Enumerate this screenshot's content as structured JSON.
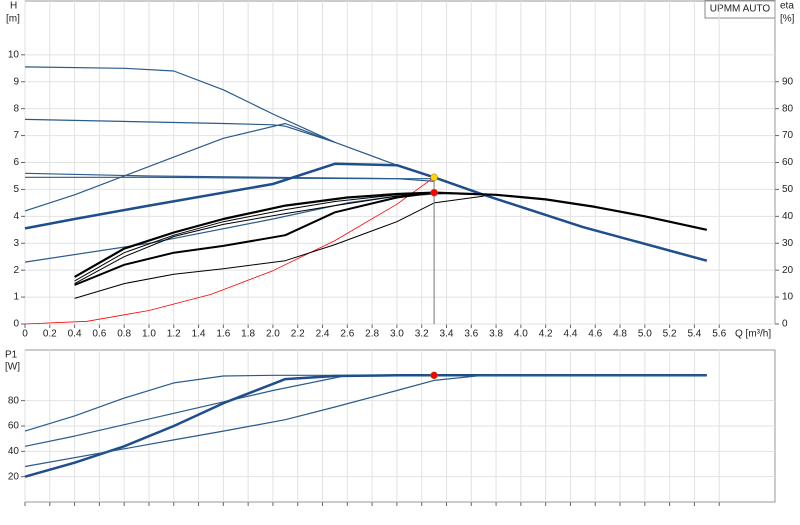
{
  "chart_data": [
    {
      "type": "line",
      "title": "UPMM AUTO",
      "ylabel": "H",
      "yunit": "[m]",
      "y2label": "eta",
      "y2unit": "[%]",
      "xlabel": "Q [m³/h]",
      "xlim": [
        0,
        6.05
      ],
      "ylim": [
        0,
        12
      ],
      "y2lim": [
        0,
        120
      ],
      "grid": true,
      "xtick_labels": true,
      "xticks": [
        0,
        0.2,
        0.4,
        0.6,
        0.8,
        {
          "value": 1,
          "label": "1.0"
        },
        1.2,
        1.4,
        1.6,
        1.8,
        {
          "value": 2,
          "label": "2.0"
        },
        2.2,
        2.4,
        2.6,
        2.8,
        {
          "value": 3,
          "label": "3.0"
        },
        3.2,
        3.4,
        3.6,
        3.8,
        {
          "value": 4,
          "label": "4.0"
        },
        4.2,
        4.4,
        4.6,
        4.8,
        {
          "value": 5,
          "label": "5.0"
        },
        5.2,
        5.4,
        5.6
      ],
      "yticks": [
        0,
        1,
        2,
        3,
        4,
        5,
        6,
        7,
        8,
        9,
        10
      ],
      "y2ticks": [
        0,
        10,
        20,
        30,
        40,
        50,
        60,
        70,
        80,
        90
      ],
      "series": [
        {
          "color": "#2a5a8c",
          "width": 1.2,
          "x": [
            0,
            0.8,
            1.2,
            1.6,
            2.0,
            2.5,
            3.0,
            3.3,
            3.7,
            4.5,
            5.5
          ],
          "values": [
            9.55,
            9.5,
            9.4,
            8.7,
            7.8,
            6.75,
            5.9,
            5.45,
            4.8,
            3.6,
            2.35
          ]
        },
        {
          "color": "#2a5a8c",
          "width": 1.2,
          "x": [
            0,
            1.6,
            2.0,
            2.1,
            2.5
          ],
          "values": [
            7.6,
            7.45,
            7.4,
            7.35,
            6.75
          ]
        },
        {
          "color": "#2a5a8c",
          "width": 1.2,
          "x": [
            0,
            1.0,
            2.0,
            3.0,
            3.3
          ],
          "values": [
            5.6,
            5.5,
            5.45,
            5.4,
            5.3
          ]
        },
        {
          "color": "#2a5a8c",
          "width": 1.2,
          "x": [
            0,
            1.0,
            2.0,
            3.0,
            3.3
          ],
          "values": [
            5.45,
            5.45,
            5.42,
            5.4,
            5.4
          ]
        },
        {
          "color": "#2a5a8c",
          "width": 1.2,
          "x": [
            0,
            0.4,
            1.2,
            1.6,
            2.1,
            2.5
          ],
          "values": [
            4.2,
            4.8,
            6.2,
            6.9,
            7.45,
            6.75
          ]
        },
        {
          "color": "#2a5a8c",
          "width": 1.2,
          "x": [
            0,
            1.0,
            2.0,
            2.6,
            3.0,
            3.4,
            3.7
          ],
          "values": [
            2.3,
            3.0,
            3.9,
            4.5,
            4.75,
            4.85,
            4.8
          ]
        },
        {
          "color": "#1f4e8c",
          "width": 2.5,
          "x": [
            0,
            0.4,
            1.0,
            2.0,
            2.5,
            3.0,
            3.3,
            3.7,
            4.5,
            5.5
          ],
          "values": [
            3.55,
            3.9,
            4.4,
            5.2,
            5.95,
            5.9,
            5.45,
            4.8,
            3.6,
            2.35
          ]
        },
        {
          "color": "#ff0000",
          "width": 0.8,
          "x": [
            0,
            0.5,
            1.0,
            1.5,
            2.0,
            2.5,
            3.0,
            3.3
          ],
          "values": [
            0,
            0.1,
            0.5,
            1.1,
            1.98,
            3.1,
            4.45,
            5.45
          ]
        },
        {
          "color": "#000000",
          "width": 2.2,
          "axis": "y2",
          "x": [
            0.4,
            0.8,
            1.2,
            1.6,
            2.1,
            2.6,
            3.0,
            3.3,
            3.8,
            4.2,
            4.6,
            5.0,
            5.5
          ],
          "values": [
            17.5,
            28,
            34,
            39,
            44,
            47,
            48.3,
            48.8,
            48,
            46.3,
            43.5,
            40,
            35
          ]
        },
        {
          "color": "#000000",
          "width": 1,
          "axis": "y2",
          "x": [
            0.4,
            0.8,
            1.2,
            1.6,
            2.1,
            2.5,
            3.0,
            3.3
          ],
          "values": [
            16,
            26.5,
            33,
            38,
            42.5,
            45.5,
            48,
            48.8
          ]
        },
        {
          "color": "#000000",
          "width": 1,
          "axis": "y2",
          "x": [
            0.4,
            0.8,
            1.2,
            1.6,
            2.1,
            2.5,
            3.0,
            3.3
          ],
          "values": [
            15,
            25,
            32.5,
            37,
            41,
            44,
            47.5,
            48.8
          ]
        },
        {
          "color": "#000000",
          "width": 2,
          "axis": "y2",
          "x": [
            0.4,
            0.8,
            1.2,
            1.6,
            2.1,
            2.5,
            3.0,
            3.3
          ],
          "values": [
            14.5,
            22,
            26.5,
            29,
            33,
            41.5,
            47,
            48.8
          ]
        },
        {
          "color": "#000000",
          "width": 1,
          "axis": "y2",
          "x": [
            0.4,
            0.8,
            1.2,
            1.6,
            2.1,
            2.5,
            3.0,
            3.3,
            3.7
          ],
          "values": [
            9.5,
            15,
            18.5,
            20.5,
            23.5,
            29.5,
            38,
            45,
            47.5
          ]
        }
      ],
      "vline": 3.3,
      "points": [
        {
          "x": 3.3,
          "value": 5.45,
          "color": "#ffd700"
        },
        {
          "x": 3.3,
          "value": 48.8,
          "axis": "y2",
          "color": "#ff0000"
        }
      ]
    },
    {
      "type": "line",
      "ylabel": "P1",
      "yunit": "[W]",
      "xlim": [
        0,
        6.05
      ],
      "ylim": [
        0,
        120
      ],
      "grid": true,
      "xtick_labels": false,
      "xticks": [
        0,
        0.2,
        0.4,
        0.6,
        0.8,
        1,
        1.2,
        1.4,
        1.6,
        1.8,
        2,
        2.2,
        2.4,
        2.6,
        2.8,
        3,
        3.2,
        3.4,
        3.6,
        3.8,
        4,
        4.2,
        4.4,
        4.6,
        4.8,
        5,
        5.2,
        5.4,
        5.6
      ],
      "yticks": [
        20,
        40,
        60,
        80
      ],
      "series": [
        {
          "color": "#2a5a8c",
          "width": 1.2,
          "x": [
            0,
            0.4,
            0.8,
            1.2,
            1.6,
            2.0,
            5.5
          ],
          "values": [
            56,
            68,
            82,
            94,
            99.5,
            100,
            100
          ]
        },
        {
          "color": "#2a5a8c",
          "width": 1.2,
          "x": [
            0,
            0.4,
            0.8,
            1.2,
            1.6,
            2.0,
            2.4,
            2.6,
            5.5
          ],
          "values": [
            44,
            52,
            61,
            70,
            79,
            88,
            96,
            100,
            100
          ]
        },
        {
          "color": "#1f4e8c",
          "width": 2.5,
          "x": [
            0,
            0.4,
            0.8,
            1.2,
            1.6,
            2.1,
            2.5,
            3.0,
            5.5
          ],
          "values": [
            20,
            31,
            44,
            60,
            78,
            97,
            99.5,
            100,
            100
          ]
        },
        {
          "color": "#2a5a8c",
          "width": 1.2,
          "x": [
            0,
            0.8,
            1.2,
            1.6,
            2.1,
            2.5,
            3.0,
            3.3,
            3.7,
            5.5
          ],
          "values": [
            28,
            42,
            49,
            56,
            65,
            75,
            88,
            96,
            100,
            100
          ]
        }
      ],
      "points": [
        {
          "x": 3.3,
          "value": 100,
          "color": "#ff0000"
        }
      ]
    }
  ]
}
